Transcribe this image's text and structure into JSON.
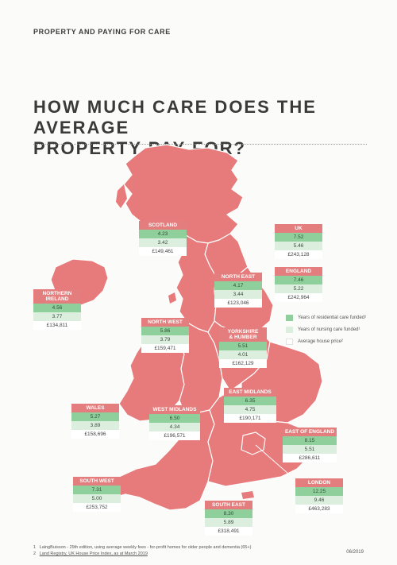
{
  "header": {
    "section_label": "PROPERTY AND PAYING FOR CARE"
  },
  "title": {
    "line1": "HOW MUCH CARE DOES THE AVERAGE",
    "line2": "PROPERTY PAY FOR?"
  },
  "colors": {
    "map_fill": "#e77a7a",
    "residential": "#8fcf9c",
    "nursing": "#dcefdf",
    "price": "#ffffff"
  },
  "regions": [
    {
      "id": "uk",
      "name": "UK",
      "residential": "7.52",
      "nursing": "5.46",
      "price": "£243,128"
    },
    {
      "id": "england",
      "name": "ENGLAND",
      "residential": "7.46",
      "nursing": "5.22",
      "price": "£242,964"
    },
    {
      "id": "scotland",
      "name": "SCOTLAND",
      "residential": "4.23",
      "nursing": "3.42",
      "price": "£149,461"
    },
    {
      "id": "northern-ireland",
      "name_line1": "NORTHERN",
      "name_line2": "IRELAND",
      "residential": "4.56",
      "nursing": "3.77",
      "price": "£134,811"
    },
    {
      "id": "north-east",
      "name": "NORTH EAST",
      "residential": "4.17",
      "nursing": "3.44",
      "price": "£123,046"
    },
    {
      "id": "north-west",
      "name": "NORTH WEST",
      "residential": "5.86",
      "nursing": "3.79",
      "price": "£159,471"
    },
    {
      "id": "yorkshire",
      "name_line1": "YORKSHIRE",
      "name_line2": "& HUMBER",
      "residential": "5.51",
      "nursing": "4.01",
      "price": "£162,129"
    },
    {
      "id": "east-midlands",
      "name": "EAST MIDLANDS",
      "residential": "6.35",
      "nursing": "4.75",
      "price": "£190,171"
    },
    {
      "id": "west-midlands",
      "name": "WEST MIDLANDS",
      "residential": "6.50",
      "nursing": "4.34",
      "price": "£196,571"
    },
    {
      "id": "wales",
      "name": "WALES",
      "residential": "5.27",
      "nursing": "3.89",
      "price": "£158,696"
    },
    {
      "id": "east-of-england",
      "name": "EAST OF ENGLAND",
      "residential": "8.15",
      "nursing": "5.51",
      "price": "£286,611"
    },
    {
      "id": "south-west",
      "name": "SOUTH WEST",
      "residential": "7.31",
      "nursing": "5.00",
      "price": "£253,752"
    },
    {
      "id": "london",
      "name": "LONDON",
      "residential": "12.25",
      "nursing": "9.46",
      "price": "£463,283"
    },
    {
      "id": "south-east",
      "name": "SOUTH EAST",
      "residential": "8.30",
      "nursing": "5.89",
      "price": "£318,491"
    }
  ],
  "legend": {
    "residential": "Years of residential care funded¹",
    "nursing": "Years of nursing care funded¹",
    "price": "Average house price²"
  },
  "footnotes": {
    "n1": "1",
    "note1": "LaingBuisson - 29th edition, using average weekly fees - for-profit homes for older people and dementia (65+)",
    "n2": "2",
    "note2": "Land Registry, UK House Price Index, as at March 2019"
  },
  "date": "06/2019"
}
